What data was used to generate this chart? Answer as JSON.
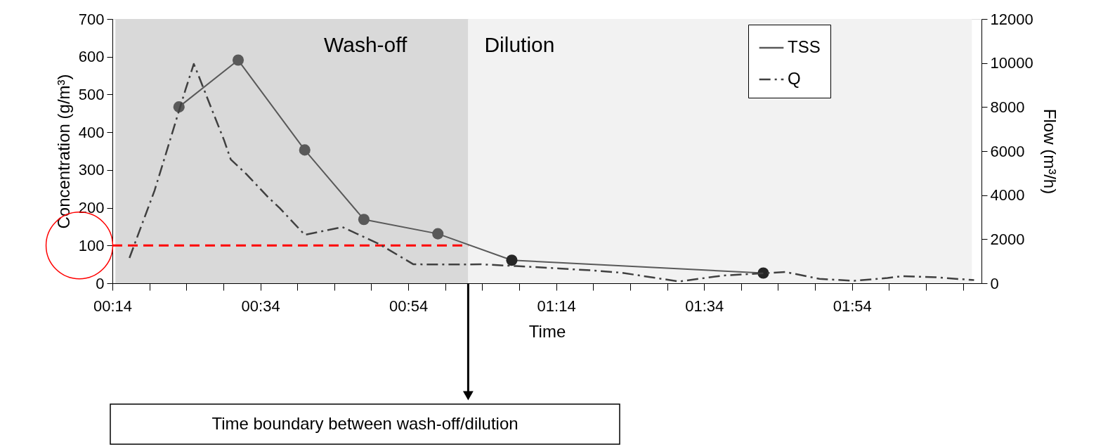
{
  "chart_data": {
    "type": "line",
    "xlabel": "Time",
    "ylabel": "Concentration (g/m³)",
    "y2label": "Flow (m³/h)",
    "xlim": [
      0.2333,
      2.1917
    ],
    "xticks": [
      {
        "value": 0.2333,
        "label": "00:14"
      },
      {
        "value": 0.3167,
        "label": null
      },
      {
        "value": 0.4,
        "label": null
      },
      {
        "value": 0.4833,
        "label": null
      },
      {
        "value": 0.5667,
        "label": "00:34"
      },
      {
        "value": 0.65,
        "label": null
      },
      {
        "value": 0.7333,
        "label": null
      },
      {
        "value": 0.8167,
        "label": null
      },
      {
        "value": 0.9,
        "label": "00:54"
      },
      {
        "value": 0.9833,
        "label": null
      },
      {
        "value": 1.0667,
        "label": null
      },
      {
        "value": 1.15,
        "label": null
      },
      {
        "value": 1.2333,
        "label": "01:14"
      },
      {
        "value": 1.3167,
        "label": null
      },
      {
        "value": 1.4,
        "label": null
      },
      {
        "value": 1.4833,
        "label": null
      },
      {
        "value": 1.5667,
        "label": "01:34"
      },
      {
        "value": 1.65,
        "label": null
      },
      {
        "value": 1.7333,
        "label": null
      },
      {
        "value": 1.8167,
        "label": null
      },
      {
        "value": 1.9,
        "label": "01:54"
      },
      {
        "value": 1.9833,
        "label": null
      },
      {
        "value": 2.0667,
        "label": null
      },
      {
        "value": 2.15,
        "label": null
      }
    ],
    "ylim": [
      0,
      700
    ],
    "yticks": [
      0,
      100,
      200,
      300,
      400,
      500,
      600,
      700
    ],
    "y2lim": [
      0,
      12000
    ],
    "y2ticks": [
      0,
      2000,
      4000,
      6000,
      8000,
      10000,
      12000
    ],
    "grid": false,
    "legend": "top right",
    "series": [
      {
        "name": "TSS",
        "marker": "circle",
        "line_style": "solid",
        "color": "#595959",
        "colors": [
          "#595959",
          "#595959",
          "#595959",
          "#595959",
          "#595959",
          "#262626",
          "#262626"
        ],
        "x": [
          0.3833,
          0.5167,
          0.6667,
          0.8,
          0.9667,
          1.1333,
          1.7
        ],
        "values": [
          467,
          591,
          353,
          169,
          131,
          61,
          27
        ]
      },
      {
        "name": "Q",
        "axis": "y2",
        "marker": "none",
        "line_style": "dashed",
        "color": "#404040",
        "x": [
          0.2717,
          0.3,
          0.3283,
          0.3517,
          0.375,
          0.3983,
          0.4167,
          0.425,
          0.455,
          0.485,
          0.5,
          0.535,
          0.585,
          0.61,
          0.6667,
          0.7517,
          0.8333,
          0.9117,
          0.9867,
          1.0633,
          1.1433,
          1.24,
          1.3167,
          1.38,
          1.51,
          1.61,
          1.75,
          1.8267,
          1.905,
          1.98,
          2.0117,
          2.09,
          2.175
        ],
        "values": [
          1150,
          2680,
          4210,
          5740,
          7280,
          8810,
          9960,
          9550,
          8010,
          6490,
          5620,
          4960,
          3890,
          3420,
          2200,
          2550,
          1790,
          860,
          850,
          860,
          780,
          670,
          580,
          480,
          80,
          350,
          510,
          200,
          110,
          240,
          320,
          270,
          140
        ]
      }
    ],
    "bands": [
      {
        "axis": "x",
        "from": 0.24,
        "to": 1.035,
        "label": "Wash-off",
        "color": "#d9d9d9"
      },
      {
        "axis": "x",
        "from": 1.035,
        "to": 2.17,
        "label": "Dilution",
        "color": "#f2f2f2"
      }
    ],
    "ref_lines": [
      {
        "axis": "y",
        "value": 100,
        "color": "#ff0000",
        "line_style": "dashed"
      }
    ],
    "annotations": [
      "Time boundary between wash-off/dilution"
    ]
  }
}
